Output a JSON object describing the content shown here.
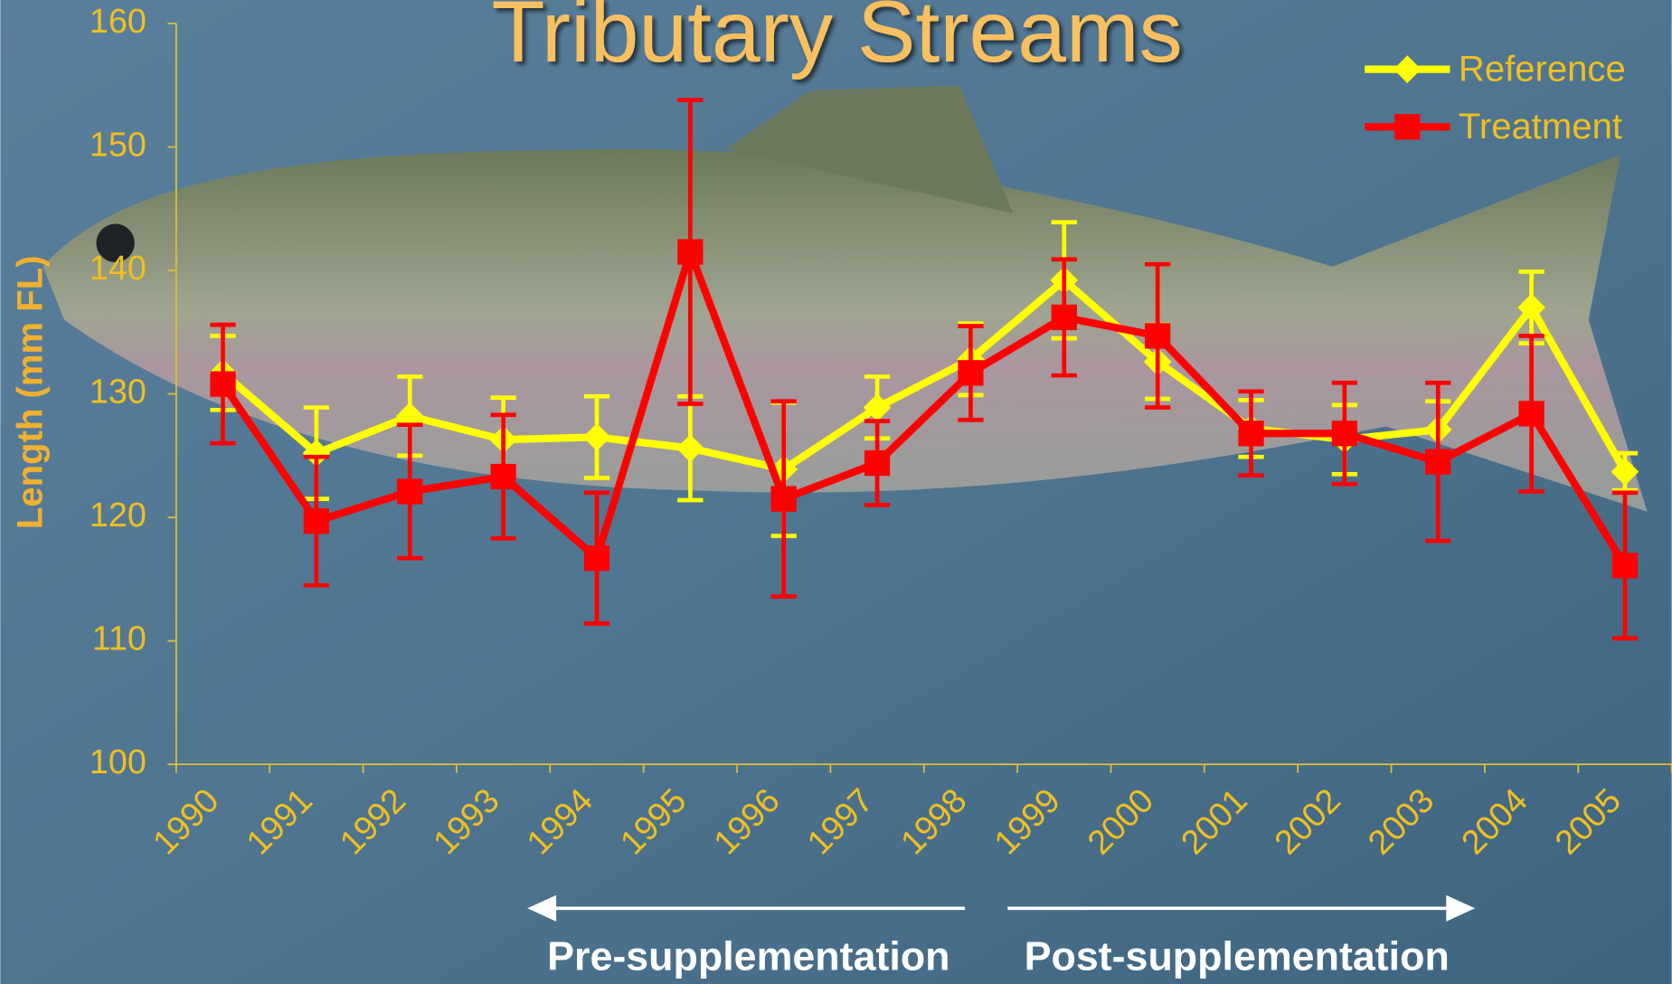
{
  "chart_data": {
    "type": "line",
    "title": "Tributary Streams",
    "y_label": "Length (mm FL)",
    "categories": [
      "1990",
      "1991",
      "1992",
      "1993",
      "1994",
      "1995",
      "1996",
      "1997",
      "1998",
      "1999",
      "2000",
      "2001",
      "2002",
      "2003",
      "2004",
      "2005"
    ],
    "series": [
      {
        "name": "Reference",
        "color": "#ffff00",
        "marker": "diamond",
        "values": [
          131.7,
          125.2,
          128.2,
          126.3,
          126.5,
          125.6,
          123.9,
          128.9,
          132.8,
          139.2,
          132.6,
          127.2,
          126.3,
          127.1,
          137.0,
          123.7
        ],
        "errors": [
          3.0,
          3.7,
          3.2,
          3.4,
          3.3,
          4.2,
          5.4,
          2.5,
          2.9,
          4.7,
          3.0,
          2.3,
          2.8,
          2.3,
          2.9,
          1.5
        ]
      },
      {
        "name": "Treatment",
        "color": "#ff0000",
        "marker": "square",
        "values": [
          130.8,
          119.7,
          122.1,
          123.3,
          116.7,
          141.5,
          121.5,
          124.4,
          131.7,
          136.2,
          134.7,
          126.8,
          126.8,
          124.5,
          128.4,
          116.1
        ],
        "errors": [
          4.8,
          5.2,
          5.4,
          5.0,
          5.3,
          12.3,
          7.9,
          3.4,
          3.8,
          4.7,
          5.8,
          3.4,
          4.1,
          6.4,
          6.3,
          5.9
        ]
      }
    ],
    "ylim": [
      100,
      160
    ],
    "yticks": [
      100,
      110,
      120,
      130,
      140,
      150,
      160
    ],
    "legend": "top-right",
    "annotations": [
      "Pre-supplementation",
      "Post-supplementation"
    ]
  }
}
